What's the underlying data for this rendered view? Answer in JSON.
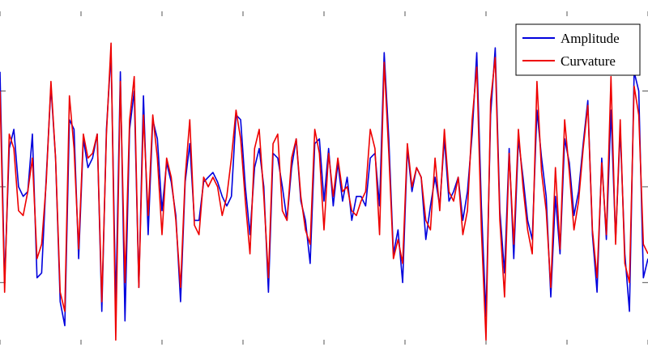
{
  "chart_data": {
    "type": "line",
    "title": "",
    "xlabel": "",
    "ylabel": "",
    "grid": false,
    "legend_position": "top-right",
    "xlim": [
      0,
      160
    ],
    "ylim": [
      -1.85,
      1.95
    ],
    "series": [
      {
        "name": "Amplitude",
        "color": "#0000dd",
        "values": [
          1.2,
          -1.0,
          0.4,
          0.6,
          0.0,
          -0.1,
          -0.05,
          0.55,
          -0.95,
          -0.9,
          0.1,
          1.05,
          0.3,
          -1.2,
          -1.45,
          0.7,
          0.6,
          -0.75,
          0.5,
          0.2,
          0.3,
          0.55,
          -1.3,
          0.6,
          1.4,
          -1.25,
          1.2,
          -1.4,
          0.6,
          1.0,
          -1.05,
          0.95,
          -0.5,
          0.7,
          0.5,
          -0.25,
          0.25,
          0.05,
          -0.3,
          -1.2,
          0.05,
          0.45,
          -0.35,
          -0.35,
          0.05,
          0.1,
          0.15,
          0.05,
          -0.1,
          -0.2,
          -0.1,
          0.75,
          0.7,
          0.0,
          -0.5,
          0.2,
          0.4,
          0.0,
          -1.1,
          0.35,
          0.3,
          0.0,
          -0.35,
          0.2,
          0.5,
          -0.15,
          -0.35,
          -0.8,
          0.45,
          0.5,
          -0.15,
          0.4,
          -0.2,
          0.25,
          -0.15,
          0.1,
          -0.35,
          -0.1,
          -0.1,
          -0.2,
          0.3,
          0.35,
          -0.2,
          1.4,
          0.5,
          -0.7,
          -0.45,
          -1.0,
          0.4,
          -0.05,
          0.2,
          0.1,
          -0.55,
          -0.2,
          0.1,
          -0.2,
          0.5,
          -0.15,
          -0.05,
          0.1,
          -0.35,
          -0.05,
          0.55,
          1.4,
          -0.2,
          -1.35,
          0.75,
          1.45,
          -0.25,
          -0.9,
          0.4,
          -0.75,
          0.5,
          0.1,
          -0.35,
          -0.55,
          0.8,
          0.3,
          -0.1,
          -1.15,
          -0.1,
          -0.7,
          0.5,
          0.25,
          -0.3,
          -0.05,
          0.45,
          0.9,
          -0.5,
          -1.1,
          0.3,
          -0.55,
          0.8,
          -0.55,
          0.6,
          -0.7,
          -1.3,
          1.2,
          1.0,
          -0.95,
          -0.75
        ]
      },
      {
        "name": "Curvature",
        "color": "#ee0000",
        "values": [
          1.0,
          -1.1,
          0.55,
          0.4,
          -0.25,
          -0.3,
          -0.05,
          0.3,
          -0.75,
          -0.6,
          0.05,
          1.1,
          0.3,
          -1.1,
          -1.3,
          0.95,
          0.4,
          -0.65,
          0.55,
          0.3,
          0.35,
          0.55,
          -1.2,
          0.55,
          1.5,
          -1.6,
          1.1,
          -1.0,
          0.7,
          1.15,
          -1.05,
          0.75,
          -0.3,
          0.75,
          0.3,
          -0.5,
          0.3,
          0.1,
          -0.35,
          -1.05,
          0.1,
          0.7,
          -0.4,
          -0.5,
          0.1,
          0.0,
          0.1,
          0.0,
          -0.3,
          -0.1,
          0.3,
          0.8,
          0.5,
          -0.15,
          -0.7,
          0.4,
          0.6,
          -0.1,
          -0.95,
          0.45,
          0.55,
          -0.25,
          -0.35,
          0.3,
          0.5,
          -0.1,
          -0.45,
          -0.6,
          0.6,
          0.35,
          -0.45,
          0.35,
          -0.1,
          0.3,
          -0.05,
          0.0,
          -0.25,
          -0.3,
          -0.15,
          -0.05,
          0.6,
          0.4,
          -0.5,
          1.3,
          0.35,
          -0.75,
          -0.55,
          -0.8,
          0.45,
          0.0,
          0.2,
          0.1,
          -0.35,
          -0.45,
          0.3,
          -0.25,
          0.6,
          -0.05,
          -0.15,
          0.1,
          -0.5,
          -0.25,
          0.7,
          1.25,
          -0.45,
          -1.6,
          0.9,
          1.35,
          -0.35,
          -1.15,
          0.35,
          -0.6,
          0.6,
          0.0,
          -0.45,
          -0.7,
          1.1,
          0.15,
          -0.25,
          -1.05,
          0.2,
          -0.65,
          0.7,
          0.15,
          -0.45,
          -0.15,
          0.4,
          0.85,
          -0.45,
          -0.95,
          0.25,
          -0.5,
          1.15,
          -0.6,
          0.7,
          -0.8,
          -1.0,
          1.05,
          0.75,
          -0.6,
          -0.7
        ]
      }
    ]
  }
}
